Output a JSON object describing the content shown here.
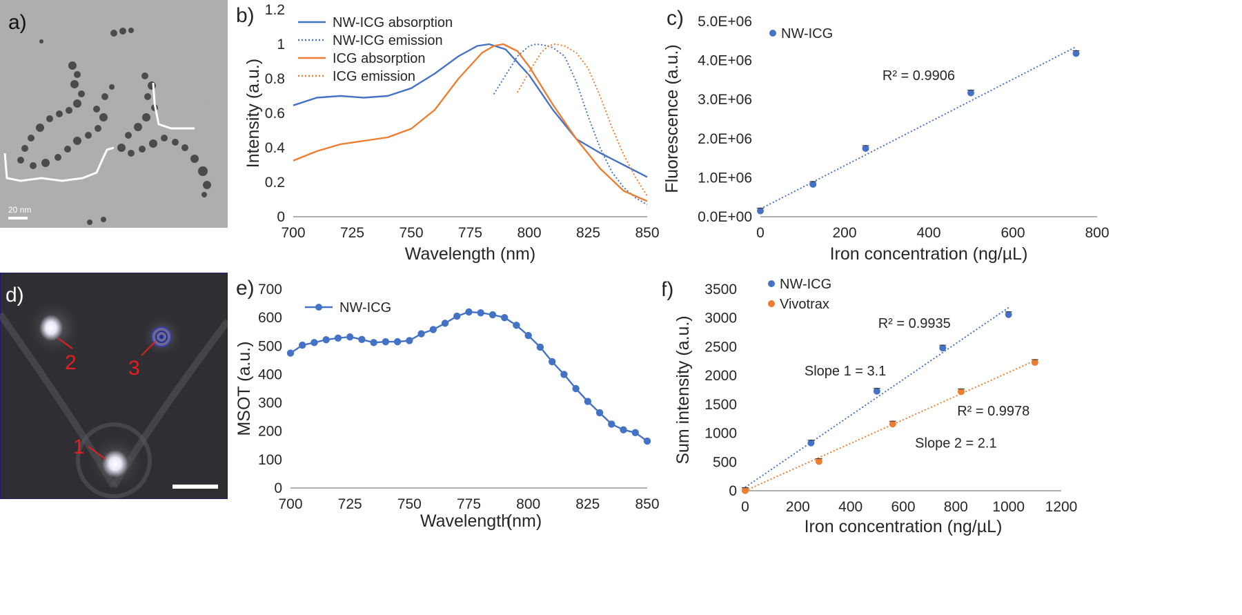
{
  "colors": {
    "blue": "#4472c4",
    "orange": "#ed7d31",
    "axis": "#7f7f7f",
    "text": "#262626",
    "white_line": "#ffffff"
  },
  "panels": {
    "a": {
      "letter": "a)",
      "scale_label": "20 nm"
    },
    "d": {
      "letter": "d)",
      "markers": [
        "1",
        "2",
        "3"
      ]
    }
  },
  "chart_data": [
    {
      "id": "b",
      "letter": "b)",
      "type": "line",
      "xlabel": "Wavelength (nm)",
      "ylabel": "Intensity (a.u.)",
      "xlim": [
        700,
        850
      ],
      "ylim": [
        0,
        1.2
      ],
      "xticks": [
        "700",
        "725",
        "750",
        "775",
        "800",
        "825",
        "850"
      ],
      "yticks": [
        "0",
        "0.2",
        "0.4",
        "0.6",
        "0.8",
        "1",
        "1.2"
      ],
      "series": [
        {
          "name": "NW-ICG absorption",
          "color": "blue",
          "style": "solid",
          "x": [
            700,
            710,
            720,
            730,
            740,
            750,
            760,
            770,
            778,
            783,
            790,
            800,
            810,
            820,
            830,
            840,
            850
          ],
          "y": [
            0.645,
            0.69,
            0.7,
            0.69,
            0.7,
            0.745,
            0.83,
            0.93,
            0.99,
            1.0,
            0.97,
            0.82,
            0.62,
            0.45,
            0.37,
            0.3,
            0.23
          ]
        },
        {
          "name": "NW-ICG emission",
          "color": "blue",
          "style": "dotted",
          "x": [
            785,
            790,
            795,
            800,
            803,
            806,
            810,
            815,
            820,
            825,
            830,
            835,
            840,
            845,
            850
          ],
          "y": [
            0.71,
            0.82,
            0.93,
            0.99,
            1.0,
            0.995,
            0.98,
            0.93,
            0.78,
            0.58,
            0.4,
            0.26,
            0.17,
            0.11,
            0.07
          ]
        },
        {
          "name": "ICG absorption",
          "color": "orange",
          "style": "solid",
          "x": [
            700,
            710,
            720,
            730,
            740,
            750,
            760,
            770,
            780,
            785,
            789,
            795,
            800,
            810,
            820,
            830,
            840,
            850
          ],
          "y": [
            0.325,
            0.38,
            0.42,
            0.44,
            0.46,
            0.51,
            0.62,
            0.8,
            0.95,
            0.99,
            1.0,
            0.96,
            0.87,
            0.65,
            0.45,
            0.28,
            0.15,
            0.09
          ]
        },
        {
          "name": "ICG emission",
          "color": "orange",
          "style": "dotted",
          "x": [
            795,
            800,
            805,
            808,
            811,
            815,
            820,
            825,
            830,
            835,
            840,
            845,
            850
          ],
          "y": [
            0.72,
            0.84,
            0.95,
            0.99,
            1.0,
            0.99,
            0.95,
            0.86,
            0.7,
            0.52,
            0.36,
            0.23,
            0.12
          ]
        }
      ]
    },
    {
      "id": "c",
      "letter": "c)",
      "type": "scatter",
      "xlabel": "Iron concentration (ng/µL)",
      "ylabel": "Fluorescence (a.u.)",
      "xlim": [
        0,
        800
      ],
      "ylim": [
        0,
        5000000
      ],
      "xticks": [
        "0",
        "200",
        "400",
        "600",
        "800"
      ],
      "yticks": [
        "0.0E+00",
        "1.0E+06",
        "2.0E+06",
        "3.0E+06",
        "4.0E+06",
        "5.0E+06"
      ],
      "series": [
        {
          "name": "NW-ICG",
          "color": "blue",
          "x": [
            0,
            125,
            250,
            500,
            750
          ],
          "y": [
            150000,
            830000,
            1750000,
            3170000,
            4180000
          ],
          "trend": {
            "x": [
              0,
              750
            ],
            "y": [
              200000,
              4350000
            ]
          }
        }
      ],
      "annotations": [
        {
          "text": "R² = 0.9906",
          "x": 290,
          "y": 3500000
        }
      ]
    },
    {
      "id": "e",
      "letter": "e)",
      "type": "line",
      "xlabel": "Wavelength\n(nm)",
      "xlabel_line1": "Wavelength",
      "xlabel_line2": "(nm)",
      "ylabel": "MSOT (a.u.)",
      "xlim": [
        700,
        850
      ],
      "ylim": [
        0,
        700
      ],
      "xticks": [
        "700",
        "725",
        "750",
        "775",
        "800",
        "825",
        "850"
      ],
      "yticks": [
        "0",
        "100",
        "200",
        "300",
        "400",
        "500",
        "600",
        "700"
      ],
      "series": [
        {
          "name": "NW-ICG",
          "color": "blue",
          "x": [
            700,
            705,
            710,
            715,
            720,
            725,
            730,
            735,
            740,
            745,
            750,
            755,
            760,
            765,
            770,
            775,
            780,
            785,
            790,
            795,
            800,
            805,
            810,
            815,
            820,
            825,
            830,
            835,
            840,
            845,
            850
          ],
          "y": [
            475,
            503,
            512,
            522,
            528,
            532,
            523,
            512,
            515,
            515,
            519,
            543,
            558,
            580,
            605,
            620,
            617,
            610,
            600,
            573,
            537,
            496,
            445,
            400,
            350,
            305,
            265,
            225,
            205,
            195,
            165
          ]
        }
      ]
    },
    {
      "id": "f",
      "letter": "f)",
      "type": "scatter",
      "xlabel": "Iron concentration (ng/µL)",
      "ylabel": "Sum intensity (a.u.)",
      "xlim": [
        0,
        1200
      ],
      "ylim": [
        0,
        3500
      ],
      "xticks": [
        "0",
        "200",
        "400",
        "600",
        "800",
        "1000",
        "1200"
      ],
      "yticks": [
        "0",
        "500",
        "1000",
        "1500",
        "2000",
        "2500",
        "3000",
        "3500"
      ],
      "series": [
        {
          "name": "NW-ICG",
          "color": "blue",
          "x": [
            0,
            250,
            500,
            750,
            1000
          ],
          "y": [
            5,
            830,
            1730,
            2480,
            3060
          ],
          "trend": {
            "x": [
              0,
              1000
            ],
            "y": [
              60,
              3180
            ]
          }
        },
        {
          "name": "Vivotrax",
          "color": "orange",
          "x": [
            0,
            280,
            560,
            820,
            1100
          ],
          "y": [
            5,
            510,
            1160,
            1720,
            2230
          ],
          "trend": {
            "x": [
              0,
              1100
            ],
            "y": [
              0,
              2260
            ]
          }
        }
      ],
      "annotations": [
        {
          "text": "R² = 0.9935",
          "x": 505,
          "y": 2830
        },
        {
          "text": "Slope 1 = 3.1",
          "x": 225,
          "y": 2000
        },
        {
          "text": "R² = 0.9978",
          "x": 805,
          "y": 1305
        },
        {
          "text": "Slope 2 = 2.1",
          "x": 645,
          "y": 750
        }
      ]
    }
  ]
}
